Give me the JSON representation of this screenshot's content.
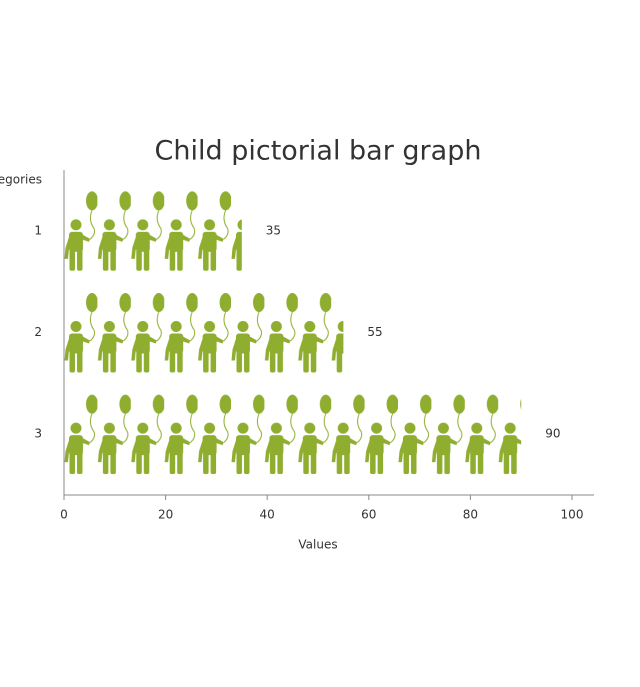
{
  "chart_data": {
    "type": "bar",
    "orientation": "horizontal",
    "title": "Child pictorial bar graph",
    "categories": [
      "1",
      "2",
      "3"
    ],
    "values": [
      35,
      55,
      90
    ],
    "color": "#8fad2f",
    "xlabel": "Values",
    "ylabel": "Categories",
    "xlim": [
      0,
      100
    ],
    "xticks": [
      0,
      20,
      40,
      60,
      80,
      100
    ],
    "grid": false
  }
}
